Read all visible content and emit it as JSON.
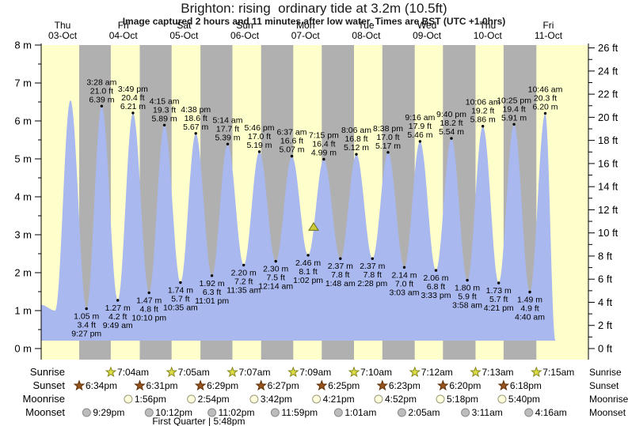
{
  "header": {
    "title": "Brighton: rising  ordinary tide at 3.2m (10.5ft)",
    "subtitle": "Image captured 2 hours and 11 minutes after low water. Times are BST (UTC +1.0hrs)"
  },
  "chart_data": {
    "type": "area",
    "title": "Brighton: rising ordinary tide at 3.2m (10.5ft)",
    "ylabel_left": "m",
    "ylabel_right": "ft",
    "y_axis_left": {
      "unit": "m",
      "min": 0,
      "max": 8,
      "major_step": 1,
      "minor_step": 0.5
    },
    "y_axis_right": {
      "unit": "ft",
      "min": 0,
      "max": 26,
      "major_step": 2,
      "minor_step": 1
    },
    "days": [
      {
        "weekday": "Thu",
        "date": "03-Oct"
      },
      {
        "weekday": "Fri",
        "date": "04-Oct"
      },
      {
        "weekday": "Sat",
        "date": "05-Oct"
      },
      {
        "weekday": "Sun",
        "date": "06-Oct"
      },
      {
        "weekday": "Mon",
        "date": "07-Oct"
      },
      {
        "weekday": "Tue",
        "date": "08-Oct"
      },
      {
        "weekday": "Wed",
        "date": "09-Oct"
      },
      {
        "weekday": "Thu",
        "date": "10-Oct"
      },
      {
        "weekday": "Fri",
        "date": "11-Oct"
      }
    ],
    "curve_start": {
      "day": 0,
      "time": "3:35 am",
      "m": 1.15,
      "estimated": true
    },
    "curve_end": {
      "day": 8,
      "time": "2:45 pm",
      "m": 0.21,
      "estimated": true
    },
    "tides": [
      {
        "type": "low",
        "day": 0,
        "time": "9:05 am",
        "m": 1.0,
        "labeled": false,
        "estimated": true
      },
      {
        "type": "high",
        "day": 0,
        "time": "3:05 pm",
        "m": 6.55,
        "labeled": false,
        "estimated": true
      },
      {
        "type": "low",
        "day": 0,
        "time": "9:27 pm",
        "m": 1.05,
        "ft": "3.4 ft",
        "labeled": true
      },
      {
        "type": "high",
        "day": 1,
        "time": "3:28 am",
        "m": 6.39,
        "ft": "21.0 ft",
        "labeled": true
      },
      {
        "type": "low",
        "day": 1,
        "time": "9:49 am",
        "m": 1.27,
        "ft": "4.2 ft",
        "labeled": true
      },
      {
        "type": "high",
        "day": 1,
        "time": "3:49 pm",
        "m": 6.21,
        "ft": "20.4 ft",
        "labeled": true
      },
      {
        "type": "low",
        "day": 1,
        "time": "10:10 pm",
        "m": 1.47,
        "ft": "4.8 ft",
        "labeled": true
      },
      {
        "type": "high",
        "day": 2,
        "time": "4:15 am",
        "m": 5.89,
        "ft": "19.3 ft",
        "labeled": true
      },
      {
        "type": "low",
        "day": 2,
        "time": "10:35 am",
        "m": 1.74,
        "ft": "5.7 ft",
        "labeled": true
      },
      {
        "type": "high",
        "day": 2,
        "time": "4:38 pm",
        "m": 5.67,
        "ft": "18.6 ft",
        "labeled": true
      },
      {
        "type": "low",
        "day": 2,
        "time": "11:01 pm",
        "m": 1.92,
        "ft": "6.3 ft",
        "labeled": true
      },
      {
        "type": "high",
        "day": 3,
        "time": "5:14 am",
        "m": 5.39,
        "ft": "17.7 ft",
        "labeled": true
      },
      {
        "type": "low",
        "day": 3,
        "time": "11:35 am",
        "m": 2.2,
        "ft": "7.2 ft",
        "labeled": true
      },
      {
        "type": "high",
        "day": 3,
        "time": "5:46 pm",
        "m": 5.19,
        "ft": "17.0 ft",
        "labeled": true
      },
      {
        "type": "low",
        "day": 4,
        "time": "12:14 am",
        "m": 2.3,
        "ft": "7.5 ft",
        "labeled": true
      },
      {
        "type": "high",
        "day": 4,
        "time": "6:37 am",
        "m": 5.07,
        "ft": "16.6 ft",
        "labeled": true
      },
      {
        "type": "low",
        "day": 4,
        "time": "1:02 pm",
        "m": 2.46,
        "ft": "8.1 ft",
        "labeled": true
      },
      {
        "type": "high",
        "day": 4,
        "time": "7:15 pm",
        "m": 4.99,
        "ft": "16.4 ft",
        "labeled": true
      },
      {
        "type": "low",
        "day": 5,
        "time": "1:48 am",
        "m": 2.37,
        "ft": "7.8 ft",
        "labeled": true
      },
      {
        "type": "high",
        "day": 5,
        "time": "8:06 am",
        "m": 5.12,
        "ft": "16.8 ft",
        "labeled": true
      },
      {
        "type": "low",
        "day": 5,
        "time": "2:28 pm",
        "m": 2.37,
        "ft": "7.8 ft",
        "labeled": true
      },
      {
        "type": "high",
        "day": 5,
        "time": "8:38 pm",
        "m": 5.17,
        "ft": "17.0 ft",
        "labeled": true
      },
      {
        "type": "low",
        "day": 6,
        "time": "3:03 am",
        "m": 2.14,
        "ft": "7.0 ft",
        "labeled": true
      },
      {
        "type": "high",
        "day": 6,
        "time": "9:16 am",
        "m": 5.46,
        "ft": "17.9 ft",
        "labeled": true
      },
      {
        "type": "low",
        "day": 6,
        "time": "3:33 pm",
        "m": 2.06,
        "ft": "6.8 ft",
        "labeled": true
      },
      {
        "type": "high",
        "day": 6,
        "time": "9:40 pm",
        "m": 5.54,
        "ft": "18.2 ft",
        "labeled": true
      },
      {
        "type": "low",
        "day": 7,
        "time": "3:58 am",
        "m": 1.8,
        "ft": "5.9 ft",
        "labeled": true
      },
      {
        "type": "high",
        "day": 7,
        "time": "10:06 am",
        "m": 5.86,
        "ft": "19.2 ft",
        "labeled": true
      },
      {
        "type": "low",
        "day": 7,
        "time": "4:21 pm",
        "m": 1.73,
        "ft": "5.7 ft",
        "labeled": true
      },
      {
        "type": "high",
        "day": 7,
        "time": "10:25 pm",
        "m": 5.91,
        "ft": "19.4 ft",
        "labeled": true
      },
      {
        "type": "low",
        "day": 8,
        "time": "4:40 am",
        "m": 1.49,
        "ft": "4.9 ft",
        "labeled": true
      },
      {
        "type": "high",
        "day": 8,
        "time": "10:46 am",
        "m": 6.2,
        "ft": "20.3 ft",
        "labeled": true
      }
    ],
    "current_marker": {
      "day": 4,
      "time": "3:13 pm",
      "m": 3.2
    },
    "sun_moon_rows": [
      {
        "label": "Sunrise",
        "icon": "sunrise-star-icon",
        "events": [
          {
            "day": 1,
            "time": "7:04am"
          },
          {
            "day": 2,
            "time": "7:05am"
          },
          {
            "day": 3,
            "time": "7:07am"
          },
          {
            "day": 4,
            "time": "7:09am"
          },
          {
            "day": 5,
            "time": "7:10am"
          },
          {
            "day": 6,
            "time": "7:12am"
          },
          {
            "day": 7,
            "time": "7:13am"
          },
          {
            "day": 8,
            "time": "7:15am"
          }
        ]
      },
      {
        "label": "Sunset",
        "icon": "sunset-star-icon",
        "events": [
          {
            "day": 0,
            "time": "6:34pm"
          },
          {
            "day": 1,
            "time": "6:31pm"
          },
          {
            "day": 2,
            "time": "6:29pm"
          },
          {
            "day": 3,
            "time": "6:27pm"
          },
          {
            "day": 4,
            "time": "6:25pm"
          },
          {
            "day": 5,
            "time": "6:23pm"
          },
          {
            "day": 6,
            "time": "6:20pm"
          },
          {
            "day": 7,
            "time": "6:18pm"
          }
        ]
      },
      {
        "label": "Moonrise",
        "icon": "moonrise-circle-icon",
        "events": [
          {
            "day": 1,
            "time": "1:56pm"
          },
          {
            "day": 2,
            "time": "2:54pm"
          },
          {
            "day": 3,
            "time": "3:42pm"
          },
          {
            "day": 4,
            "time": "4:21pm"
          },
          {
            "day": 5,
            "time": "4:52pm"
          },
          {
            "day": 6,
            "time": "5:18pm"
          },
          {
            "day": 7,
            "time": "5:40pm"
          }
        ]
      },
      {
        "label": "Moonset",
        "icon": "moonset-circle-icon",
        "events": [
          {
            "day": 0,
            "time": "9:29pm"
          },
          {
            "day": 1,
            "time": "10:12pm"
          },
          {
            "day": 2,
            "time": "11:02pm"
          },
          {
            "day": 3,
            "time": "11:59pm"
          },
          {
            "day": 5,
            "time": "1:01am"
          },
          {
            "day": 6,
            "time": "2:05am"
          },
          {
            "day": 7,
            "time": "3:11am"
          },
          {
            "day": 8,
            "time": "4:16am"
          }
        ]
      }
    ],
    "moon_phase_note": {
      "text": "First Quarter | 5:48pm",
      "day": 2,
      "time": "5:48pm"
    },
    "legend_position": "none",
    "grid": false,
    "colors": {
      "day_band": "#ffffcc",
      "night_band": "#b0b0b0",
      "tide_fill": "#a9b8ef",
      "date_label": "#ee2222",
      "axis": "#000000",
      "marker_fill": "#cbcb3a",
      "marker_stroke": "#6b6b16",
      "sunrise_icon_fill": "#dcdc46",
      "sunrise_icon_stroke": "#87871c",
      "sunset_icon_fill": "#99541d",
      "sunset_icon_stroke": "#5e3008",
      "moonrise_icon_fill": "#ffffdd",
      "moonrise_icon_stroke": "#99997a",
      "moonset_icon_fill": "#bcbcbc",
      "moonset_icon_stroke": "#8a8a8a"
    }
  }
}
